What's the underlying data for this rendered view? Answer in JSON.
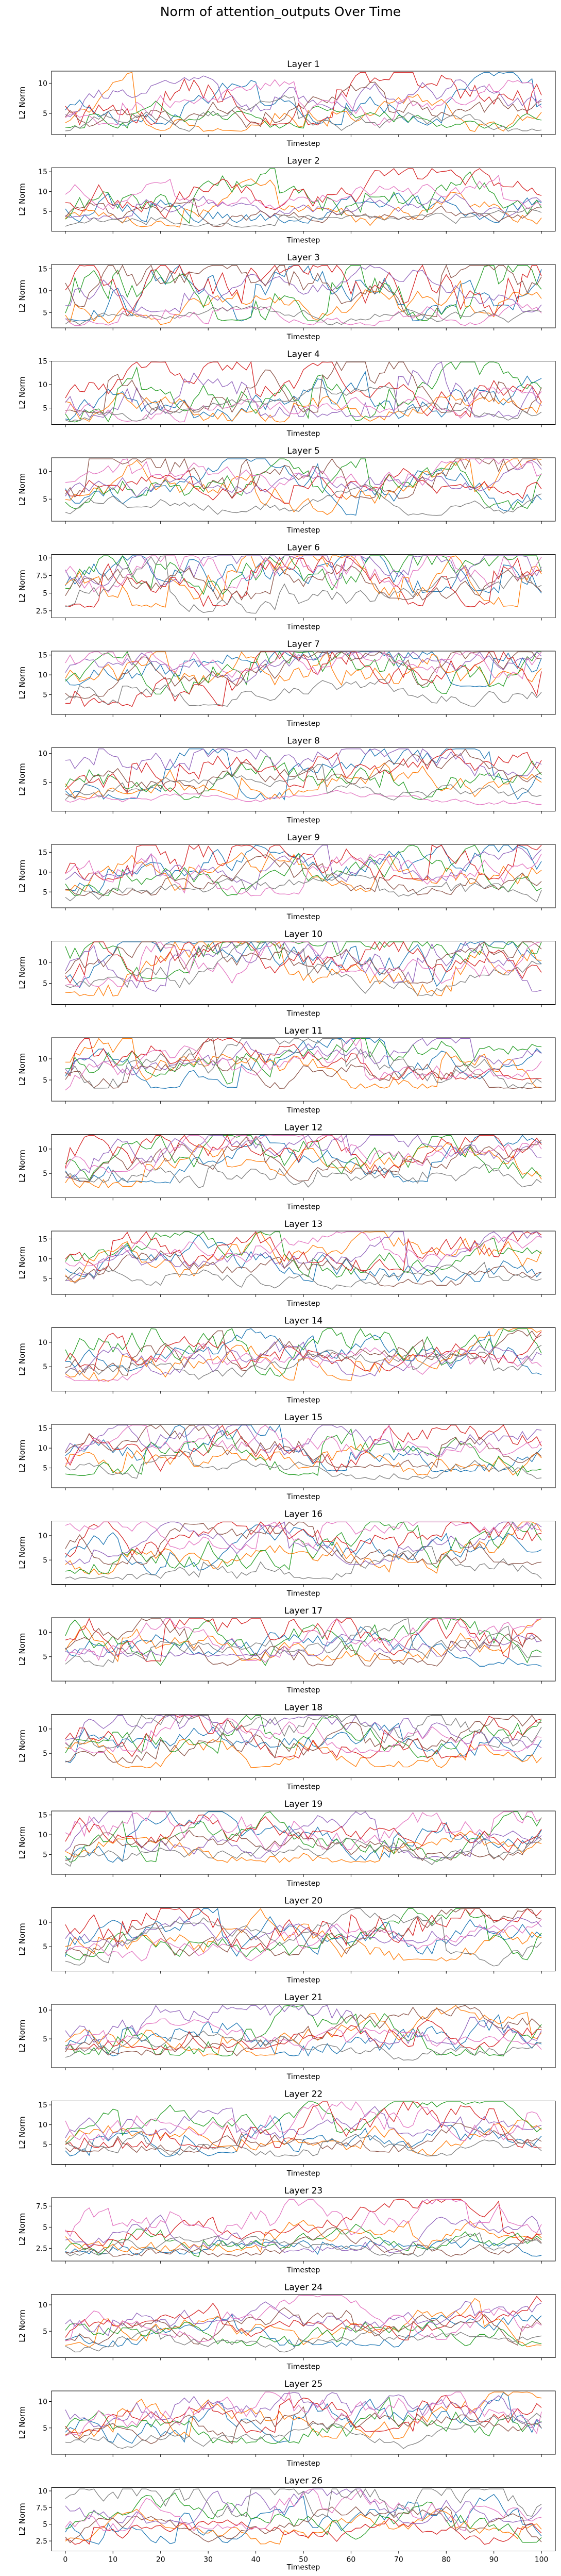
{
  "figure": {
    "title": "Norm of attention_outputs Over Time"
  },
  "chart_data": {
    "type": "line",
    "title": "Norm of attention_outputs Over Time",
    "xlabel": "Timestep",
    "ylabel": "L2 Norm",
    "xlim": [
      0,
      100
    ],
    "x_ticks": [
      0,
      10,
      20,
      30,
      40,
      50,
      60,
      70,
      80,
      90,
      100
    ],
    "tick_labels_shown_on": "last-panel-only",
    "series_colors": [
      "#1f77b4",
      "#ff7f0e",
      "#2ca02c",
      "#d62728",
      "#9467bd",
      "#8c564b",
      "#e377c2",
      "#7f7f7f"
    ],
    "panels": [
      {
        "title": "Layer 1",
        "ylim": [
          1.5,
          12
        ],
        "yticks": [
          5,
          10
        ],
        "lines": [
          [
            3,
            6
          ],
          [
            2,
            5
          ],
          [
            2.5,
            4.5
          ],
          [
            3,
            8
          ],
          [
            4,
            7
          ],
          [
            2,
            5
          ],
          [
            3,
            6
          ],
          [
            2,
            4
          ]
        ]
      },
      {
        "title": "Layer 2",
        "ylim": [
          0,
          16
        ],
        "yticks": [
          5,
          10,
          15
        ],
        "lines": [
          [
            2,
            6
          ],
          [
            1,
            5
          ],
          [
            2,
            8
          ],
          [
            3,
            9
          ],
          [
            3,
            6
          ],
          [
            1,
            4
          ],
          [
            4,
            8
          ],
          [
            1,
            3
          ]
        ]
      },
      {
        "title": "Layer 3",
        "ylim": [
          1.5,
          16
        ],
        "yticks": [
          5,
          10,
          15
        ],
        "lines": [
          [
            3,
            10
          ],
          [
            2,
            6
          ],
          [
            3,
            11
          ],
          [
            4,
            12
          ],
          [
            5,
            9
          ],
          [
            4,
            11
          ],
          [
            2,
            5
          ],
          [
            2,
            4
          ]
        ]
      },
      {
        "title": "Layer 4",
        "ylim": [
          1.5,
          15
        ],
        "yticks": [
          5,
          10,
          15
        ],
        "lines": [
          [
            2,
            7
          ],
          [
            2,
            6
          ],
          [
            2,
            8
          ],
          [
            3,
            8
          ],
          [
            3,
            10
          ],
          [
            4,
            10
          ],
          [
            2,
            5
          ],
          [
            2,
            4
          ]
        ]
      },
      {
        "title": "Layer 5",
        "ylim": [
          1,
          12.5
        ],
        "yticks": [
          5,
          10
        ],
        "lines": [
          [
            2,
            6
          ],
          [
            2,
            6
          ],
          [
            3,
            7
          ],
          [
            4,
            7
          ],
          [
            4,
            7
          ],
          [
            5,
            11
          ],
          [
            6,
            9
          ],
          [
            2,
            4
          ]
        ]
      },
      {
        "title": "Layer 6",
        "ylim": [
          1.5,
          10.5
        ],
        "yticks": [
          2.5,
          5.0,
          7.5,
          10.0
        ],
        "lines": [
          [
            5,
            9
          ],
          [
            3,
            7
          ],
          [
            4,
            8
          ],
          [
            3,
            7
          ],
          [
            6,
            10
          ],
          [
            4,
            7
          ],
          [
            5,
            9
          ],
          [
            2,
            5
          ]
        ]
      },
      {
        "title": "Layer 7",
        "ylim": [
          0,
          16
        ],
        "yticks": [
          5,
          10,
          15
        ],
        "lines": [
          [
            7,
            13
          ],
          [
            4,
            10
          ],
          [
            5,
            12
          ],
          [
            2,
            9
          ],
          [
            8,
            12
          ],
          [
            4,
            9
          ],
          [
            9,
            14
          ],
          [
            2,
            6
          ]
        ]
      },
      {
        "title": "Layer 8",
        "ylim": [
          0,
          11
        ],
        "yticks": [
          5,
          10
        ],
        "lines": [
          [
            2,
            6
          ],
          [
            2,
            5
          ],
          [
            2,
            6
          ],
          [
            3,
            7
          ],
          [
            6,
            10
          ],
          [
            2,
            5
          ],
          [
            1,
            2
          ],
          [
            1,
            3
          ]
        ]
      },
      {
        "title": "Layer 9",
        "ylim": [
          1,
          17
        ],
        "yticks": [
          5,
          10,
          15
        ],
        "lines": [
          [
            3,
            9
          ],
          [
            5,
            11
          ],
          [
            4,
            9
          ],
          [
            8,
            15
          ],
          [
            5,
            9
          ],
          [
            4,
            8
          ],
          [
            4,
            9
          ],
          [
            2,
            5
          ]
        ]
      },
      {
        "title": "Layer 10",
        "ylim": [
          0,
          15
        ],
        "yticks": [
          5,
          10
        ],
        "lines": [
          [
            3,
            9
          ],
          [
            2,
            8
          ],
          [
            6,
            13
          ],
          [
            5,
            11
          ],
          [
            3,
            9
          ],
          [
            5,
            10
          ],
          [
            4,
            10
          ],
          [
            2,
            6
          ]
        ]
      },
      {
        "title": "Layer 11",
        "ylim": [
          0,
          15
        ],
        "yticks": [
          5,
          10
        ],
        "lines": [
          [
            3,
            8
          ],
          [
            3,
            8
          ],
          [
            4,
            9
          ],
          [
            5,
            10
          ],
          [
            4,
            8
          ],
          [
            3,
            7
          ],
          [
            2,
            6
          ],
          [
            3,
            8
          ]
        ]
      },
      {
        "title": "Layer 12",
        "ylim": [
          0,
          13
        ],
        "yticks": [
          5,
          10
        ],
        "lines": [
          [
            3,
            7
          ],
          [
            2,
            6
          ],
          [
            3,
            8
          ],
          [
            4,
            9
          ],
          [
            4,
            8
          ],
          [
            3,
            7
          ],
          [
            5,
            9
          ],
          [
            2,
            5
          ]
        ]
      },
      {
        "title": "Layer 13",
        "ylim": [
          1,
          17
        ],
        "yticks": [
          5,
          10,
          15
        ],
        "lines": [
          [
            4,
            9
          ],
          [
            4,
            10
          ],
          [
            5,
            10
          ],
          [
            7,
            13
          ],
          [
            4,
            8
          ],
          [
            3,
            7
          ],
          [
            8,
            12
          ],
          [
            2,
            5
          ]
        ]
      },
      {
        "title": "Layer 14",
        "ylim": [
          0,
          13
        ],
        "yticks": [
          5,
          10
        ],
        "lines": [
          [
            3,
            7
          ],
          [
            2,
            6
          ],
          [
            3,
            9
          ],
          [
            4,
            8
          ],
          [
            3,
            7
          ],
          [
            2,
            6
          ],
          [
            2,
            5
          ],
          [
            1,
            4
          ]
        ]
      },
      {
        "title": "Layer 15",
        "ylim": [
          0,
          16
        ],
        "yticks": [
          5,
          10,
          15
        ],
        "lines": [
          [
            4,
            9
          ],
          [
            3,
            8
          ],
          [
            3,
            9
          ],
          [
            4,
            10
          ],
          [
            8,
            13
          ],
          [
            5,
            10
          ],
          [
            4,
            9
          ],
          [
            2,
            5
          ]
        ]
      },
      {
        "title": "Layer 16",
        "ylim": [
          0,
          13
        ],
        "yticks": [
          5,
          10
        ],
        "lines": [
          [
            2,
            6
          ],
          [
            2,
            6
          ],
          [
            2,
            7
          ],
          [
            3,
            8
          ],
          [
            4,
            7
          ],
          [
            4,
            8
          ],
          [
            7,
            11
          ],
          [
            1,
            4
          ]
        ]
      },
      {
        "title": "Layer 17",
        "ylim": [
          0,
          13
        ],
        "yticks": [
          5,
          10
        ],
        "lines": [
          [
            3,
            7
          ],
          [
            4,
            8
          ],
          [
            3,
            8
          ],
          [
            4,
            10
          ],
          [
            5,
            8
          ],
          [
            3,
            7
          ],
          [
            2,
            6
          ],
          [
            3,
            6
          ]
        ]
      },
      {
        "title": "Layer 18",
        "ylim": [
          0,
          13
        ],
        "yticks": [
          5,
          10
        ],
        "lines": [
          [
            3,
            7
          ],
          [
            2,
            6
          ],
          [
            4,
            8
          ],
          [
            4,
            9
          ],
          [
            6,
            10
          ],
          [
            3,
            7
          ],
          [
            5,
            9
          ],
          [
            6,
            11
          ]
        ]
      },
      {
        "title": "Layer 19",
        "ylim": [
          0,
          16
        ],
        "yticks": [
          5,
          10,
          15
        ],
        "lines": [
          [
            3,
            8
          ],
          [
            3,
            7
          ],
          [
            3,
            8
          ],
          [
            4,
            9
          ],
          [
            4,
            8
          ],
          [
            3,
            7
          ],
          [
            6,
            13
          ],
          [
            2,
            5
          ]
        ]
      },
      {
        "title": "Layer 20",
        "ylim": [
          0,
          13
        ],
        "yticks": [
          5,
          10
        ],
        "lines": [
          [
            2,
            6
          ],
          [
            2,
            6
          ],
          [
            2,
            6
          ],
          [
            4,
            10
          ],
          [
            5,
            8
          ],
          [
            3,
            7
          ],
          [
            2,
            5
          ],
          [
            1,
            4
          ]
        ]
      },
      {
        "title": "Layer 21",
        "ylim": [
          0,
          11
        ],
        "yticks": [
          5,
          10
        ],
        "lines": [
          [
            2,
            6
          ],
          [
            2,
            5
          ],
          [
            2,
            6
          ],
          [
            3,
            6
          ],
          [
            4,
            8
          ],
          [
            2,
            5
          ],
          [
            2,
            4
          ],
          [
            1,
            3
          ]
        ]
      },
      {
        "title": "Layer 22",
        "ylim": [
          0,
          16
        ],
        "yticks": [
          5,
          10,
          15
        ],
        "lines": [
          [
            2,
            6
          ],
          [
            2,
            6
          ],
          [
            3,
            7
          ],
          [
            4,
            11
          ],
          [
            4,
            8
          ],
          [
            3,
            7
          ],
          [
            6,
            12
          ],
          [
            2,
            5
          ]
        ]
      },
      {
        "title": "Layer 23",
        "ylim": [
          1,
          8.5
        ],
        "yticks": [
          2.5,
          5.0,
          7.5
        ],
        "lines": [
          [
            1.5,
            3
          ],
          [
            2,
            4
          ],
          [
            1.5,
            3
          ],
          [
            2,
            4
          ],
          [
            2,
            4
          ],
          [
            1.5,
            3
          ],
          [
            2,
            5
          ],
          [
            1.5,
            2.5
          ]
        ]
      },
      {
        "title": "Layer 24",
        "ylim": [
          0,
          12
        ],
        "yticks": [
          5,
          10
        ],
        "lines": [
          [
            2,
            5
          ],
          [
            2,
            5
          ],
          [
            2,
            5
          ],
          [
            3,
            6
          ],
          [
            4,
            7
          ],
          [
            2,
            5
          ],
          [
            3,
            6
          ],
          [
            1,
            3
          ]
        ]
      },
      {
        "title": "Layer 25",
        "ylim": [
          0,
          12
        ],
        "yticks": [
          5,
          10
        ],
        "lines": [
          [
            2,
            6
          ],
          [
            3,
            7
          ],
          [
            2,
            6
          ],
          [
            4,
            8
          ],
          [
            5,
            9
          ],
          [
            2,
            5
          ],
          [
            3,
            7
          ],
          [
            1,
            3
          ]
        ]
      },
      {
        "title": "Layer 26",
        "ylim": [
          1,
          10.5
        ],
        "yticks": [
          2.5,
          5.0,
          7.5,
          10.0
        ],
        "lines": [
          [
            2,
            5
          ],
          [
            2,
            4
          ],
          [
            2,
            5
          ],
          [
            2,
            4
          ],
          [
            5,
            8
          ],
          [
            2,
            4
          ],
          [
            4,
            7
          ],
          [
            6,
            10
          ]
        ]
      }
    ]
  }
}
